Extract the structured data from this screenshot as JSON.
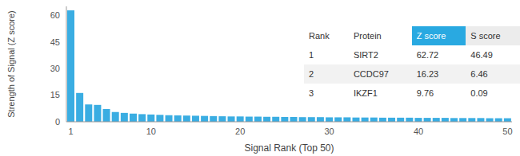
{
  "chart_data": {
    "type": "bar",
    "x_label": "Signal Rank (Top 50)",
    "y_label": "Strength of Signal (Z score)",
    "x": [
      1,
      2,
      3,
      4,
      5,
      6,
      7,
      8,
      9,
      10,
      11,
      12,
      13,
      14,
      15,
      16,
      17,
      18,
      19,
      20,
      21,
      22,
      23,
      24,
      25,
      26,
      27,
      28,
      29,
      30,
      31,
      32,
      33,
      34,
      35,
      36,
      37,
      38,
      39,
      40,
      41,
      42,
      43,
      44,
      45,
      46,
      47,
      48,
      49,
      50
    ],
    "values": [
      62.72,
      16.23,
      9.76,
      9.5,
      7.2,
      5.5,
      5.0,
      4.6,
      4.3,
      4.1,
      3.9,
      3.7,
      3.6,
      3.5,
      3.4,
      3.3,
      3.2,
      3.1,
      3.0,
      3.0,
      2.9,
      2.9,
      2.8,
      2.8,
      2.7,
      2.7,
      2.6,
      2.6,
      2.6,
      2.5,
      2.5,
      2.5,
      2.4,
      2.4,
      2.4,
      2.3,
      2.3,
      2.3,
      2.3,
      2.2,
      2.2,
      2.2,
      2.2,
      2.1,
      2.1,
      2.1,
      2.1,
      2.0,
      2.0,
      2.0
    ],
    "color": "#3aade2",
    "xlim": [
      0.5,
      50.5
    ],
    "xticks": [
      1,
      10,
      20,
      30,
      40,
      50
    ],
    "ylim": [
      0,
      65
    ],
    "yticks": [
      0,
      15,
      30,
      45,
      60
    ],
    "grid": false
  },
  "table": {
    "columns": [
      "Rank",
      "Protein",
      "Z score",
      "S score"
    ],
    "rows": [
      [
        1,
        "SIRT2",
        62.72,
        46.49
      ],
      [
        2,
        "CCDC97",
        16.23,
        6.46
      ],
      [
        3,
        "IKZF1",
        9.76,
        0.09
      ]
    ]
  }
}
